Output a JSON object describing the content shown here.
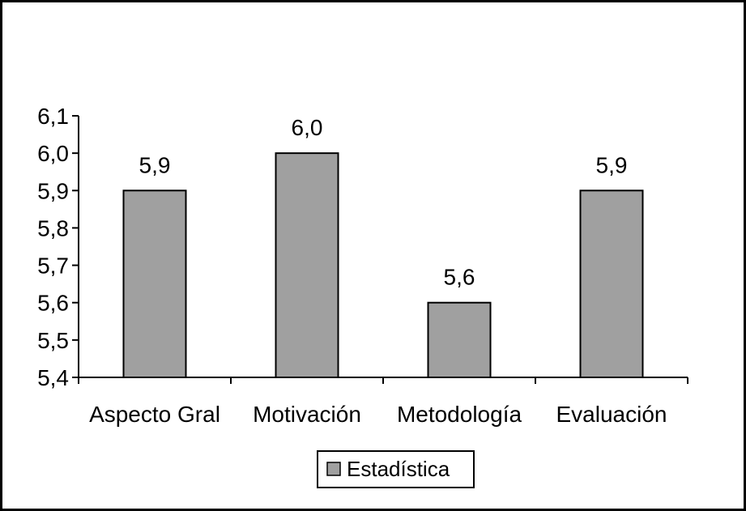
{
  "chart_data": {
    "type": "bar",
    "categories": [
      "Aspecto Gral",
      "Motivación",
      "Metodología",
      "Evaluación"
    ],
    "series": [
      {
        "name": "Estadística",
        "values": [
          5.9,
          6.0,
          5.6,
          5.9
        ],
        "color": "#a0a0a0"
      }
    ],
    "data_labels": [
      "5,9",
      "6,0",
      "5,6",
      "5,9"
    ],
    "y_tick_labels": [
      "5,4",
      "5,5",
      "5,6",
      "5,7",
      "5,8",
      "5,9",
      "6,0",
      "6,1"
    ],
    "ylim": [
      5.4,
      6.1
    ],
    "y_tick_step": 0.1,
    "title": "",
    "xlabel": "",
    "ylabel": "",
    "grid": false,
    "legend": {
      "position": "bottom-center",
      "entries": [
        "Estadística"
      ]
    },
    "colors": {
      "bar_fill": "#a0a0a0",
      "bar_stroke": "#000000",
      "axis": "#000000",
      "frame": "#000000"
    }
  }
}
